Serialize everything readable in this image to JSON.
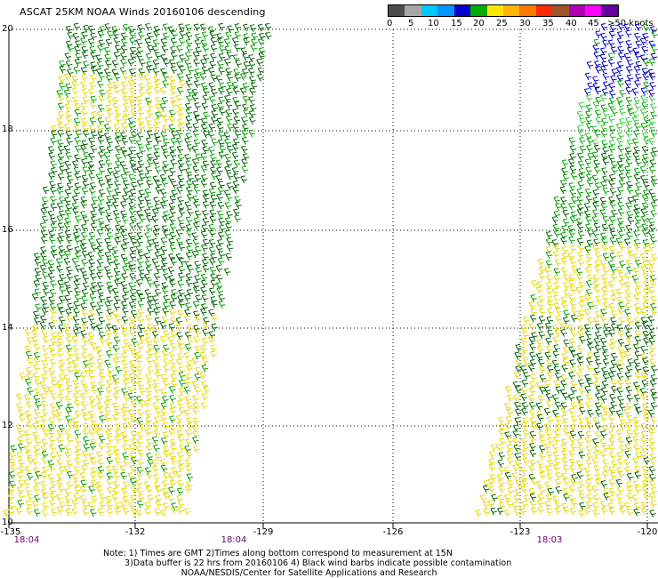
{
  "title": "ASCAT 25KM NOAA Winds 20160106 descending",
  "colorbar": {
    "colors": [
      "#4d4d4d",
      "#a6a6a6",
      "#00c8ff",
      "#0096ff",
      "#0000cc",
      "#00aa00",
      "#ffe600",
      "#ffb400",
      "#ff7800",
      "#ff2800",
      "#a0522d",
      "#b400b4",
      "#ff00ff",
      "#6400a0"
    ],
    "tick_labels": [
      "0",
      "5",
      "10",
      "15",
      "20",
      "25",
      "30",
      "35",
      "40",
      "45",
      ">50 knots"
    ]
  },
  "map": {
    "lat_labels": [
      "20",
      "18",
      "16",
      "14",
      "12",
      "10"
    ],
    "lon_labels": [
      "-135",
      "-132",
      "-129",
      "-126",
      "-123",
      "-120"
    ],
    "time_labels": [
      "18:04",
      "18:04",
      "18:03"
    ],
    "grid": true,
    "lat_range": [
      10,
      20
    ],
    "lon_range": [
      -135,
      -120
    ],
    "wind_colors": {
      "dark_green": "#006400",
      "green": "#00a000",
      "light_green": "#32cd32",
      "yellow": "#e6d800",
      "blue": "#0000c8"
    }
  },
  "notes": {
    "line1": "Note: 1) Times are GMT 2)Times along bottom correspond to measurement at 15N",
    "line2": "3)Data buffer is 22 hrs from 20160106 4) Black wind barbs indicate possible contamination",
    "line3": "NOAA/NESDIS/Center for Satellite Applications and Research"
  }
}
